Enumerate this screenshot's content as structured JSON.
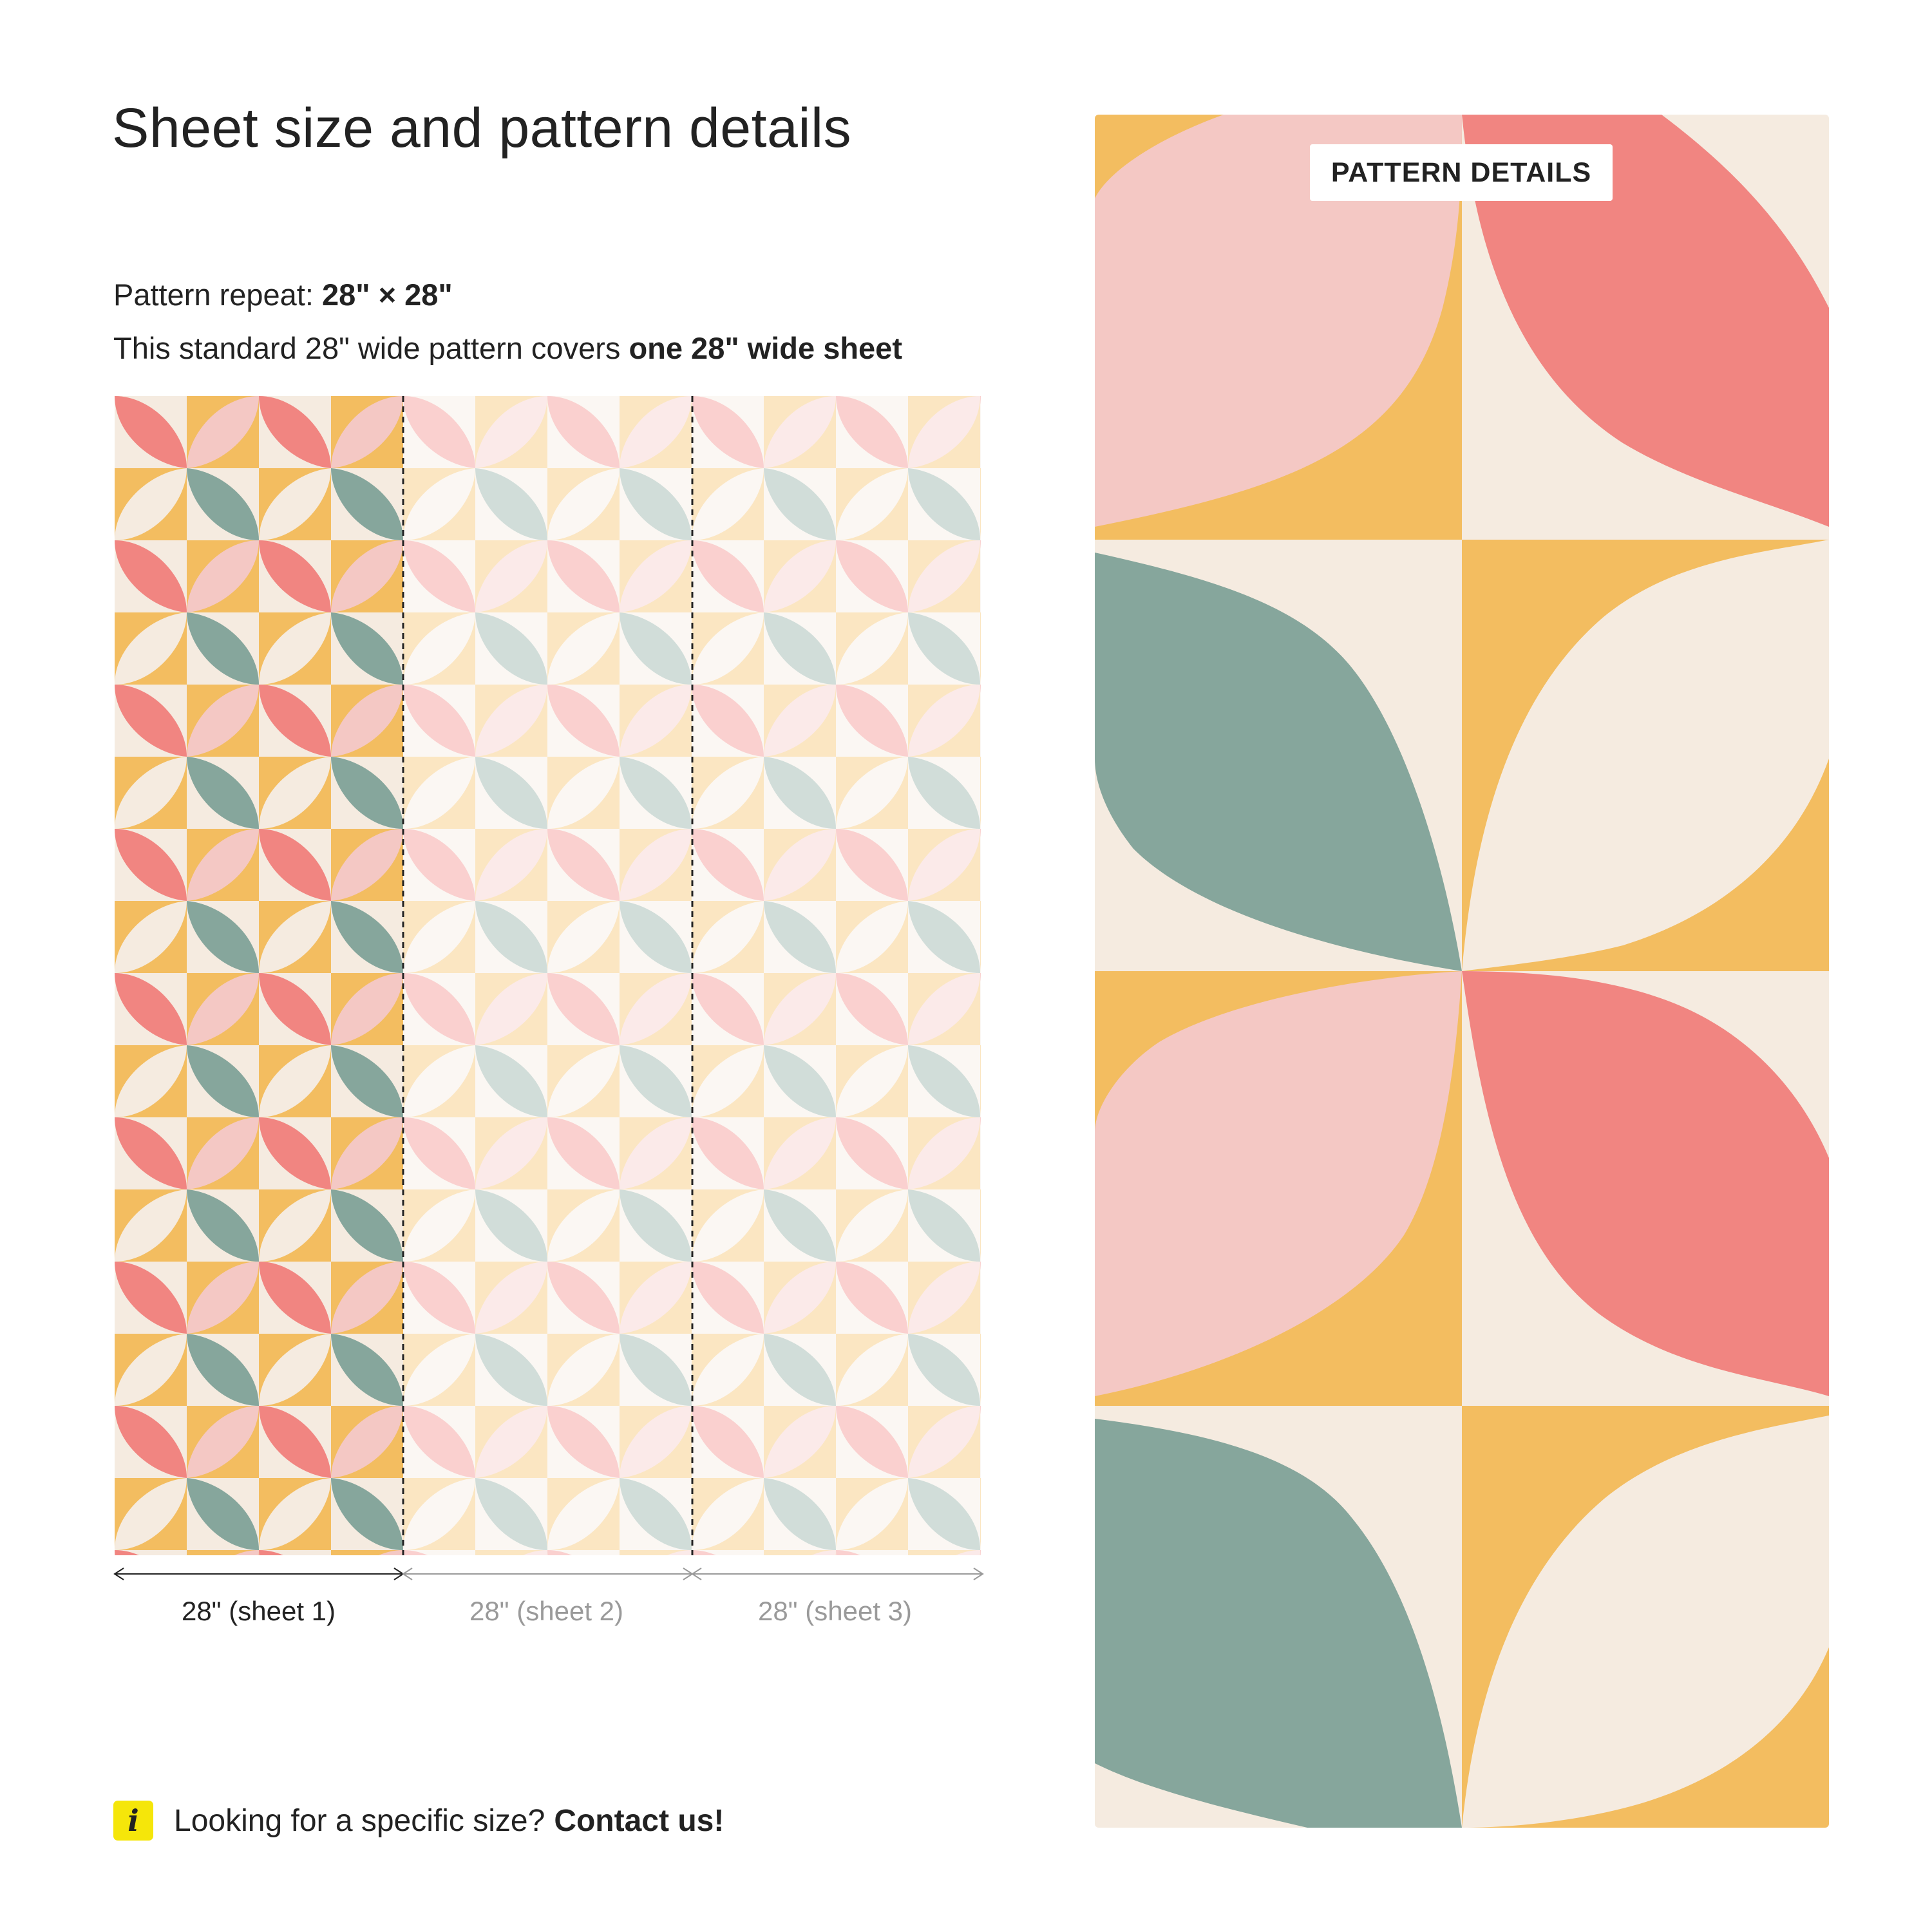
{
  "page": {
    "title": "Sheet size and pattern details",
    "repeat_label": "Pattern repeat:",
    "repeat_value": "28\" × 28\"",
    "cover_text": "This standard 28\" wide pattern covers",
    "cover_value": "one 28\" wide sheet"
  },
  "sheets": [
    {
      "label": "28\" (sheet 1)"
    },
    {
      "label": "28\" (sheet 2)"
    },
    {
      "label": "28\" (sheet 3)"
    }
  ],
  "contact": {
    "icon": "info-icon",
    "icon_glyph": "i",
    "text": "Looking for a specific size?",
    "link": "Contact us!"
  },
  "detail": {
    "label": "PATTERN DETAILS"
  },
  "palette": {
    "yellow": "#F3BD60",
    "cream": "#F5EBE0",
    "coral": "#F18581",
    "pink": "#F4C8C4",
    "sage": "#86A69C"
  }
}
